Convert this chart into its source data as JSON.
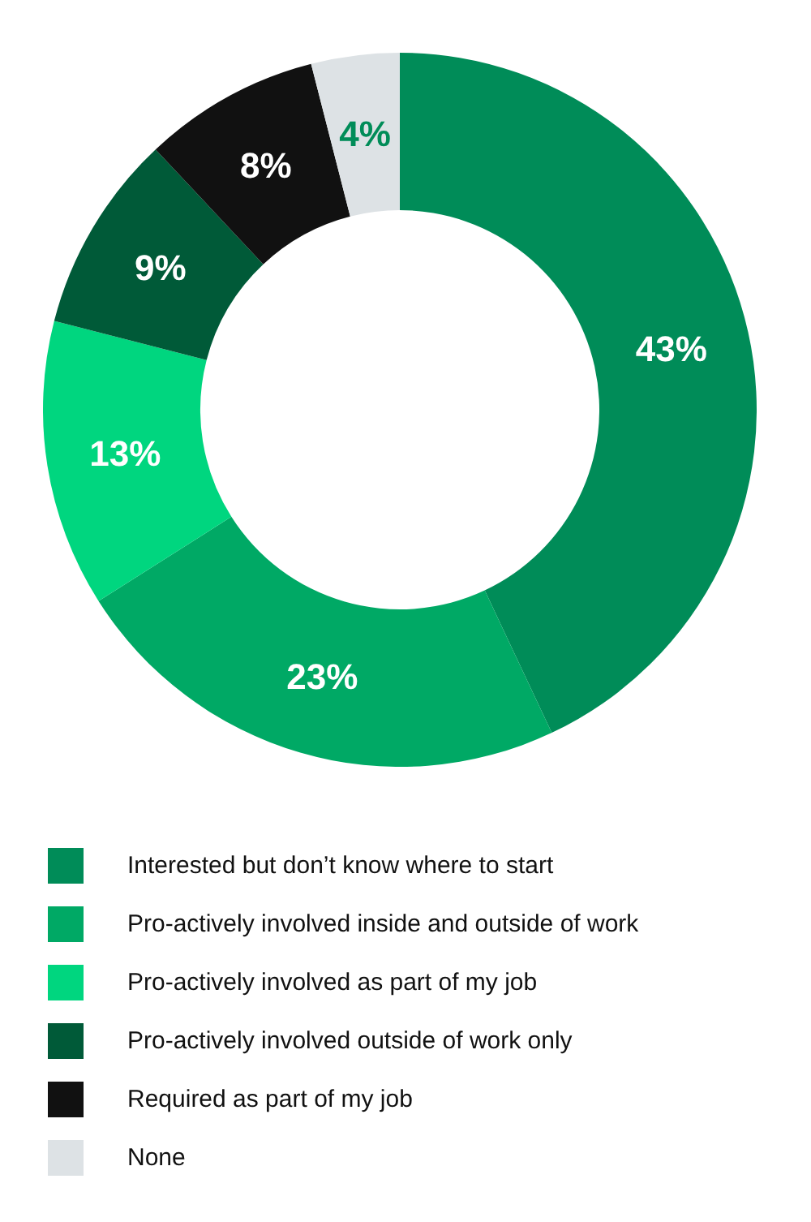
{
  "chart_data": {
    "type": "donut",
    "categories": [
      "Interested but don’t know where to start",
      "Pro-actively involved inside and outside of work",
      "Pro-actively involved as part of my job",
      "Pro-actively involved outside of work only",
      "Required as part of my job",
      "None"
    ],
    "values": [
      43,
      23,
      13,
      9,
      8,
      4
    ],
    "value_labels": [
      "43%",
      "23%",
      "13%",
      "9%",
      "8%",
      "4%"
    ],
    "colors": [
      "#008c58",
      "#00a965",
      "#00d67f",
      "#005a38",
      "#111111",
      "#dde2e5"
    ],
    "legend": "bottom"
  }
}
